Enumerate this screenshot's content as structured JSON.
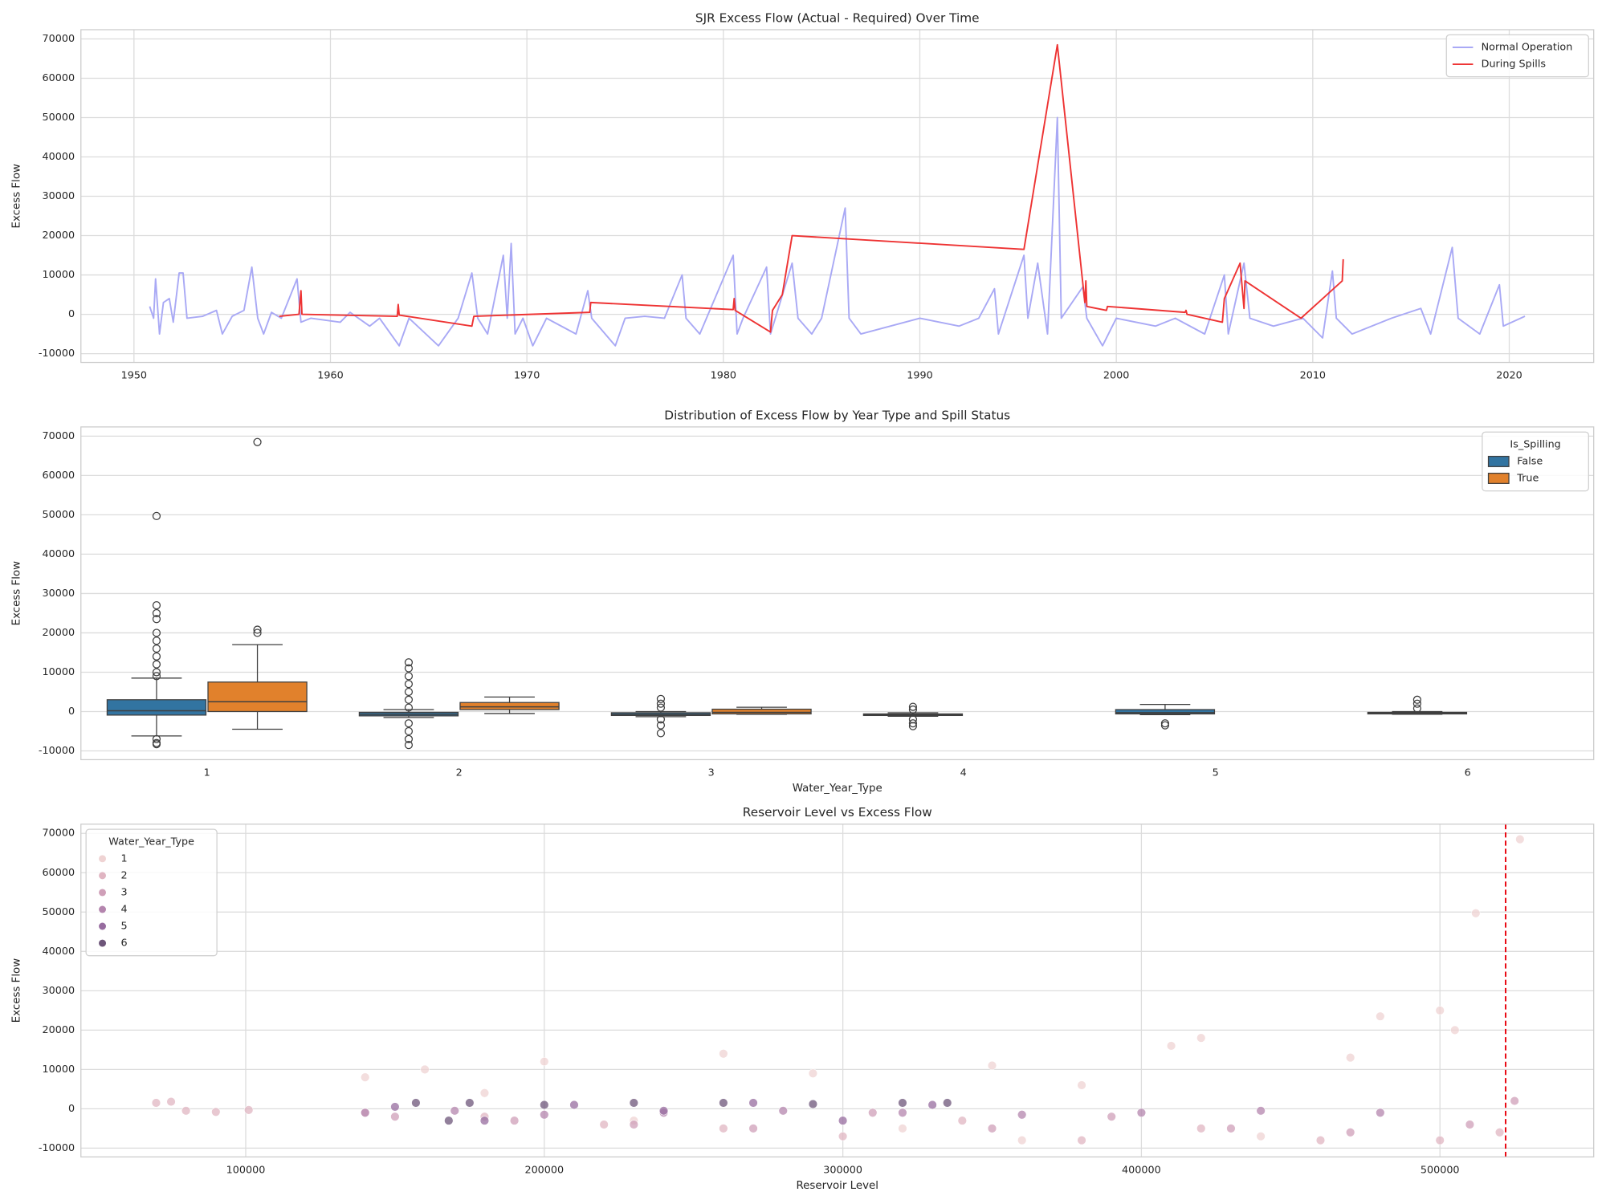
{
  "chart_data": [
    {
      "type": "line",
      "title": "SJR Excess Flow (Actual - Required) Over Time",
      "ylabel": "Excess Flow",
      "xlim": [
        1947.3,
        2024.3
      ],
      "xticks": [
        1950,
        1960,
        1970,
        1980,
        1990,
        2000,
        2010,
        2020
      ],
      "ylim": [
        -12230,
        72340
      ],
      "yticks": [
        -10000,
        0,
        10000,
        20000,
        30000,
        40000,
        50000,
        60000,
        70000
      ],
      "grid": "both",
      "legend": "upper right",
      "series": [
        {
          "name": "Normal Operation",
          "color": "#a9a9f5",
          "x": [
            1950.8,
            1951.0,
            1951.1,
            1951.3,
            1951.5,
            1951.8,
            1952.0,
            1952.3,
            1952.5,
            1952.7,
            1953.5,
            1954.2,
            1954.5,
            1955.0,
            1955.6,
            1956.0,
            1956.3,
            1956.6,
            1957.0,
            1957.5,
            1958.3,
            1958.5,
            1959.0,
            1960.5,
            1961.0,
            1962.0,
            1962.5,
            1963.5,
            1964.0,
            1965.5,
            1966.5,
            1967.2,
            1967.5,
            1968.0,
            1968.8,
            1969.0,
            1969.2,
            1969.4,
            1969.8,
            1970.3,
            1971.0,
            1972.5,
            1973.1,
            1973.3,
            1974.5,
            1975.0,
            1976.0,
            1977.0,
            1977.9,
            1978.1,
            1978.8,
            1980.5,
            1980.7,
            1981.0,
            1982.2,
            1982.4,
            1983.5,
            1983.8,
            1984.5,
            1985.0,
            1986.2,
            1986.4,
            1987.0,
            1990.0,
            1992.0,
            1993.0,
            1993.8,
            1994.0,
            1995.3,
            1995.5,
            1996.0,
            1996.5,
            1997.0,
            1997.2,
            1998.3,
            1998.5,
            1999.3,
            2000.0,
            2002.0,
            2003.0,
            2004.5,
            2005.5,
            2005.7,
            2006.5,
            2006.8,
            2008.0,
            2009.5,
            2010.5,
            2011.0,
            2011.2,
            2012.0,
            2014.0,
            2015.5,
            2016.0,
            2017.1,
            2017.4,
            2018.5,
            2019.5,
            2019.7,
            2020.8
          ],
          "values": [
            2000,
            -1000,
            9000,
            -5000,
            3000,
            4000,
            -2000,
            10500,
            10500,
            -1000,
            -500,
            1000,
            -5000,
            -500,
            1000,
            12000,
            -1000,
            -5000,
            500,
            -1000,
            9000,
            -2000,
            -1000,
            -2000,
            500,
            -3000,
            -1000,
            -8000,
            -1000,
            -8000,
            -1000,
            10500,
            -1000,
            -5000,
            15000,
            -1000,
            18000,
            -5000,
            -1000,
            -8000,
            -1000,
            -5000,
            6000,
            -1000,
            -8000,
            -1000,
            -500,
            -1000,
            10000,
            -1000,
            -5000,
            15000,
            -5000,
            -1000,
            12000,
            -5000,
            13000,
            -1000,
            -5000,
            -1000,
            27000,
            -1000,
            -5000,
            -1000,
            -3000,
            -1000,
            6500,
            -5000,
            15000,
            -1000,
            13000,
            -5000,
            50000,
            -1000,
            7000,
            -1000,
            -8000,
            -1000,
            -3000,
            -1000,
            -5000,
            10000,
            -5000,
            13000,
            -1000,
            -3000,
            -1000,
            -6000,
            11000,
            -1000,
            -5000,
            -1000,
            1500,
            -5000,
            17000,
            -1000,
            -5000,
            7500,
            -3000,
            -500
          ]
        },
        {
          "name": "During Spills",
          "color": "#ee3333",
          "x": [
            1957.4,
            1958.4,
            1958.5,
            1958.55,
            1963.4,
            1963.45,
            1963.5,
            1967.2,
            1967.3,
            1973.2,
            1973.25,
            1980.5,
            1980.55,
            1980.6,
            1982.4,
            1982.5,
            1983.0,
            1983.5,
            1995.3,
            1997.0,
            1998.4,
            1998.45,
            1998.5,
            1999.5,
            1999.55,
            2003.5,
            2003.55,
            2003.6,
            2005.4,
            2005.5,
            2006.3,
            2006.5,
            2006.55,
            2009.4,
            2011.5,
            2011.55
          ],
          "values": [
            -500,
            0,
            6000,
            0,
            -500,
            2500,
            -200,
            -3000,
            -500,
            500,
            3000,
            1200,
            4000,
            1000,
            -4500,
            1000,
            5000,
            20000,
            16500,
            68500,
            3000,
            8500,
            2000,
            1000,
            2000,
            500,
            1000,
            0,
            -2000,
            4000,
            13000,
            1500,
            8500,
            -1000,
            8500,
            14000
          ]
        }
      ]
    },
    {
      "type": "box",
      "title": "Distribution of Excess Flow by Year Type and Spill Status",
      "xlabel": "Water_Year_Type",
      "ylabel": "Excess Flow",
      "categories": [
        "1",
        "2",
        "3",
        "4",
        "5",
        "6"
      ],
      "ylim": [
        -12230,
        72340
      ],
      "yticks": [
        -10000,
        0,
        10000,
        20000,
        30000,
        40000,
        50000,
        60000,
        70000
      ],
      "grid": "y",
      "legend": "upper right",
      "legend_title": "Is_Spilling",
      "series": [
        {
          "name": "False",
          "color": "#3274a1",
          "boxes": [
            {
              "whisker_low": -6200,
              "q1": -900,
              "median": 200,
              "q3": 3000,
              "whisker_high": 8500,
              "outliers": [
                49700,
                27000,
                25000,
                23500,
                20000,
                18000,
                16000,
                14000,
                12000,
                10000,
                9000,
                -7000,
                -8000,
                -8300
              ]
            },
            {
              "whisker_low": -1500,
              "q1": -1100,
              "median": -700,
              "q3": -200,
              "whisker_high": 500,
              "outliers": [
                12500,
                11000,
                9000,
                7000,
                5000,
                3000,
                1000,
                -3000,
                -5000,
                -7000,
                -8500
              ]
            },
            {
              "whisker_low": -1300,
              "q1": -1000,
              "median": -700,
              "q3": -300,
              "whisker_high": 0,
              "outliers": [
                3200,
                2000,
                1000,
                -2000,
                -3500,
                -5500
              ]
            },
            {
              "whisker_low": -1200,
              "q1": -1000,
              "median": -800,
              "q3": -600,
              "whisker_high": -300,
              "outliers": [
                1200,
                500,
                -2000,
                -3000,
                -3700
              ]
            },
            {
              "whisker_low": -800,
              "q1": -600,
              "median": -300,
              "q3": 500,
              "whisker_high": 1800,
              "outliers": [
                -3000,
                -3500
              ]
            },
            {
              "whisker_low": -700,
              "q1": -600,
              "median": -400,
              "q3": -200,
              "whisker_high": 0,
              "outliers": [
                3000,
                2000,
                800
              ]
            }
          ]
        },
        {
          "name": "True",
          "color": "#e1812c",
          "boxes": [
            {
              "whisker_low": -4500,
              "q1": 0,
              "median": 2500,
              "q3": 7500,
              "whisker_high": 17000,
              "outliers": [
                68500,
                20800,
                20000
              ]
            },
            {
              "whisker_low": -500,
              "q1": 500,
              "median": 1200,
              "q3": 2300,
              "whisker_high": 3700,
              "outliers": []
            },
            {
              "whisker_low": -700,
              "q1": -600,
              "median": -200,
              "q3": 600,
              "whisker_high": 1100,
              "outliers": []
            },
            null,
            null,
            null
          ]
        }
      ]
    },
    {
      "type": "scatter",
      "title": "Reservoir Level vs Excess Flow",
      "xlabel": "Reservoir Level",
      "ylabel": "Excess Flow",
      "xlim": [
        44800,
        551500
      ],
      "xticks": [
        100000,
        200000,
        300000,
        400000,
        500000
      ],
      "ylim": [
        -12230,
        72340
      ],
      "yticks": [
        -10000,
        0,
        10000,
        20000,
        30000,
        40000,
        50000,
        60000,
        70000
      ],
      "grid": "both",
      "legend": "upper left",
      "legend_title": "Water_Year_Type",
      "vline": {
        "x": 522000,
        "color": "#e8000b"
      },
      "series": [
        {
          "name": "1",
          "color": "#efd3d3",
          "x": [
            140000,
            160000,
            180000,
            200000,
            230000,
            260000,
            290000,
            320000,
            350000,
            380000,
            410000,
            440000,
            470000,
            500000,
            512000,
            526800,
            480000,
            505000,
            360000,
            420000
          ],
          "values": [
            8000,
            10000,
            4000,
            12000,
            -3000,
            14000,
            9000,
            -5000,
            11000,
            6000,
            16000,
            -7000,
            13000,
            25000,
            49700,
            68500,
            23500,
            20000,
            -8000,
            18000
          ]
        },
        {
          "name": "2",
          "color": "#e0b5c2",
          "x": [
            70000,
            75000,
            80000,
            90000,
            101000,
            140000,
            180000,
            220000,
            260000,
            300000,
            340000,
            380000,
            420000,
            460000,
            500000,
            520000
          ],
          "values": [
            1500,
            1800,
            -500,
            -800,
            -300,
            -1000,
            -2000,
            -4000,
            -5000,
            -7000,
            -3000,
            -8000,
            -5000,
            -8000,
            -8000,
            -6000
          ]
        },
        {
          "name": "3",
          "color": "#cf9fb8",
          "x": [
            150000,
            190000,
            230000,
            270000,
            310000,
            350000,
            390000,
            430000,
            470000,
            510000,
            525000
          ],
          "values": [
            -2000,
            -3000,
            -4000,
            -5000,
            -1000,
            -5000,
            -2000,
            -5000,
            -6000,
            -4000,
            2000
          ]
        },
        {
          "name": "4",
          "color": "#b485ae",
          "x": [
            140000,
            170000,
            200000,
            240000,
            280000,
            320000,
            360000,
            400000,
            440000,
            480000
          ],
          "values": [
            -1000,
            -500,
            -1500,
            -1000,
            -500,
            -1000,
            -1500,
            -1000,
            -500,
            -1000
          ]
        },
        {
          "name": "5",
          "color": "#976c9f",
          "x": [
            150000,
            180000,
            210000,
            240000,
            270000,
            300000,
            330000
          ],
          "values": [
            500,
            -3000,
            1000,
            -500,
            1500,
            -3000,
            1000
          ]
        },
        {
          "name": "6",
          "color": "#6d5579",
          "x": [
            157000,
            175000,
            200000,
            230000,
            260000,
            290000,
            320000,
            335000,
            168000
          ],
          "values": [
            1500,
            1500,
            1000,
            1500,
            1500,
            1200,
            1500,
            1500,
            -3000
          ]
        }
      ]
    }
  ]
}
